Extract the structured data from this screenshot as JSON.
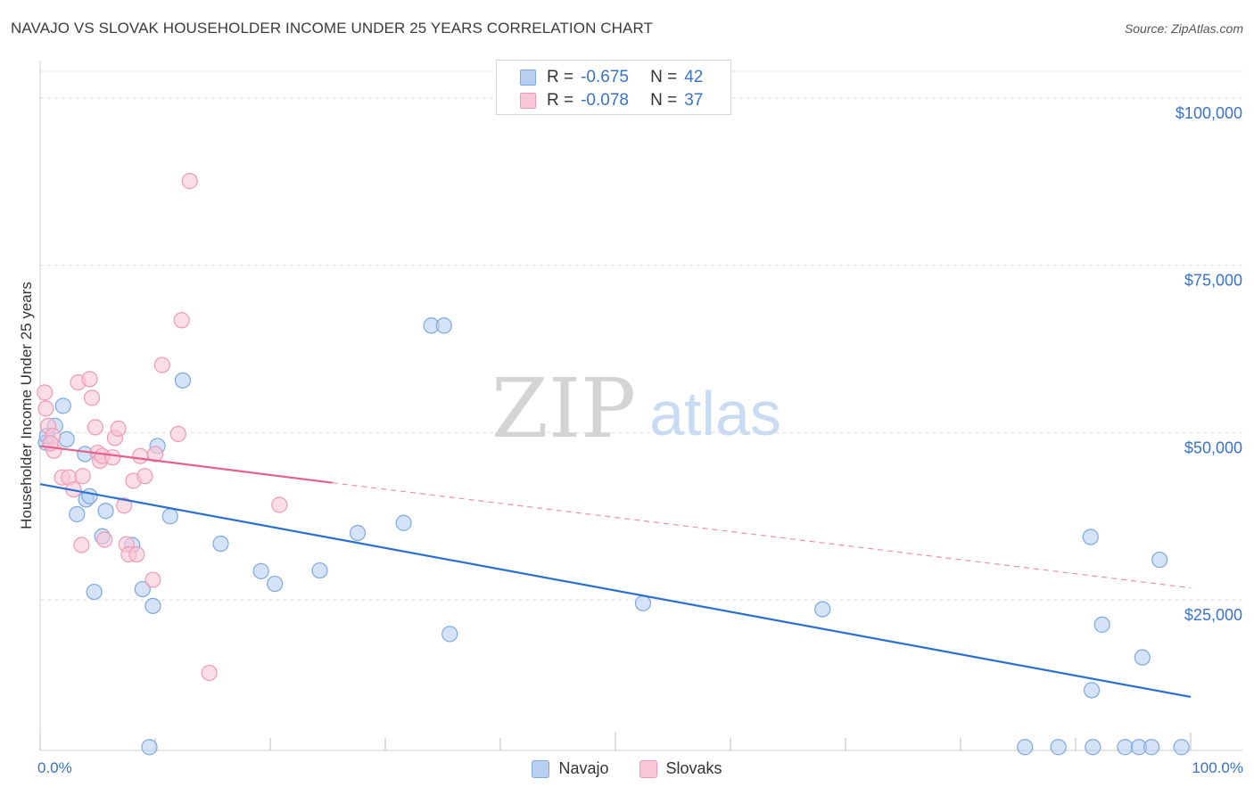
{
  "title": "NAVAJO VS SLOVAK HOUSEHOLDER INCOME UNDER 25 YEARS CORRELATION CHART",
  "source": "Source: ZipAtlas.com",
  "watermark": {
    "zip": "ZIP",
    "atlas": "atlas"
  },
  "legend_top": [
    {
      "r_label": "R =",
      "r_value": "-0.675",
      "n_label": "N =",
      "n_value": "42"
    },
    {
      "r_label": "R =",
      "r_value": "-0.078",
      "n_label": "N =",
      "n_value": "37"
    }
  ],
  "colors": {
    "navajo_fill": "#b7d0f2",
    "navajo_stroke": "#7ea8e0",
    "navajo_line": "#2a6fcf",
    "slovak_fill": "#f8c6d6",
    "slovak_stroke": "#ee9ab6",
    "slovak_line": "#e5608c",
    "axis_text": "#3a73c6",
    "grid": "#dddddd"
  },
  "chart_data": {
    "type": "scatter",
    "title": "NAVAJO VS SLOVAK HOUSEHOLDER INCOME UNDER 25 YEARS CORRELATION CHART",
    "xlabel": "",
    "ylabel": "Householder Income Under 25 years",
    "xlim": [
      0,
      100
    ],
    "ylim": [
      2500,
      104000
    ],
    "x_tick_labels": [
      "0.0%",
      "100.0%"
    ],
    "y_ticks": [
      25000,
      50000,
      75000,
      100000
    ],
    "y_tick_labels": [
      "$25,000",
      "$50,000",
      "$75,000",
      "$100,000"
    ],
    "series": [
      {
        "name": "Navajo",
        "points": [
          [
            0.5,
            48500
          ],
          [
            0.6,
            49500
          ],
          [
            1.3,
            51000
          ],
          [
            2.0,
            54000
          ],
          [
            2.3,
            49000
          ],
          [
            4.0,
            40000
          ],
          [
            3.2,
            37800
          ],
          [
            3.9,
            46800
          ],
          [
            4.3,
            40500
          ],
          [
            5.7,
            38300
          ],
          [
            5.4,
            34500
          ],
          [
            4.7,
            26200
          ],
          [
            8.0,
            33200
          ],
          [
            8.9,
            26600
          ],
          [
            9.8,
            24100
          ],
          [
            10.2,
            48000
          ],
          [
            11.3,
            37500
          ],
          [
            12.4,
            57800
          ],
          [
            15.7,
            33400
          ],
          [
            19.2,
            29300
          ],
          [
            20.4,
            27400
          ],
          [
            24.3,
            29400
          ],
          [
            27.6,
            35000
          ],
          [
            31.6,
            36500
          ],
          [
            34.0,
            66000
          ],
          [
            35.1,
            66000
          ],
          [
            35.6,
            19900
          ],
          [
            52.4,
            24500
          ],
          [
            68.0,
            23600
          ],
          [
            97.3,
            31000
          ],
          [
            91.3,
            34400
          ],
          [
            92.3,
            21300
          ],
          [
            95.8,
            16400
          ],
          [
            91.4,
            11500
          ],
          [
            9.5,
            3000
          ],
          [
            85.6,
            3000
          ],
          [
            88.5,
            3000
          ],
          [
            91.5,
            3000
          ],
          [
            94.3,
            3000
          ],
          [
            95.5,
            3000
          ],
          [
            96.6,
            3000
          ],
          [
            99.2,
            3000
          ]
        ],
        "trend": {
          "x": [
            0,
            100
          ],
          "y": [
            42300,
            10500
          ],
          "style": "solid"
        }
      },
      {
        "name": "Slovaks",
        "points": [
          [
            0.4,
            56000
          ],
          [
            0.5,
            53600
          ],
          [
            0.7,
            51000
          ],
          [
            1.2,
            47300
          ],
          [
            1.9,
            43300
          ],
          [
            2.5,
            43300
          ],
          [
            2.9,
            41500
          ],
          [
            3.7,
            43500
          ],
          [
            3.3,
            57500
          ],
          [
            4.3,
            58000
          ],
          [
            4.5,
            55200
          ],
          [
            4.8,
            50800
          ],
          [
            5.0,
            47000
          ],
          [
            5.2,
            45800
          ],
          [
            5.4,
            46500
          ],
          [
            5.6,
            34000
          ],
          [
            6.3,
            46300
          ],
          [
            6.5,
            49200
          ],
          [
            6.8,
            50600
          ],
          [
            7.3,
            39100
          ],
          [
            7.5,
            33300
          ],
          [
            7.7,
            31800
          ],
          [
            8.1,
            42800
          ],
          [
            8.4,
            31800
          ],
          [
            8.7,
            46500
          ],
          [
            9.1,
            43500
          ],
          [
            10.0,
            46800
          ],
          [
            9.8,
            28000
          ],
          [
            10.6,
            60100
          ],
          [
            12.0,
            49800
          ],
          [
            12.3,
            66800
          ],
          [
            13.0,
            87600
          ],
          [
            14.7,
            14100
          ],
          [
            20.8,
            39200
          ],
          [
            3.6,
            33200
          ],
          [
            1.1,
            49500
          ],
          [
            0.9,
            48400
          ]
        ],
        "trend": {
          "x": [
            0,
            25.4
          ],
          "y": [
            48000,
            42500
          ],
          "style": "solid",
          "extension": {
            "x": [
              25.4,
              100
            ],
            "y": [
              42500,
              26800
            ],
            "style": "dashed"
          }
        }
      }
    ]
  },
  "legend_bottom": [
    "Navajo",
    "Slovaks"
  ]
}
